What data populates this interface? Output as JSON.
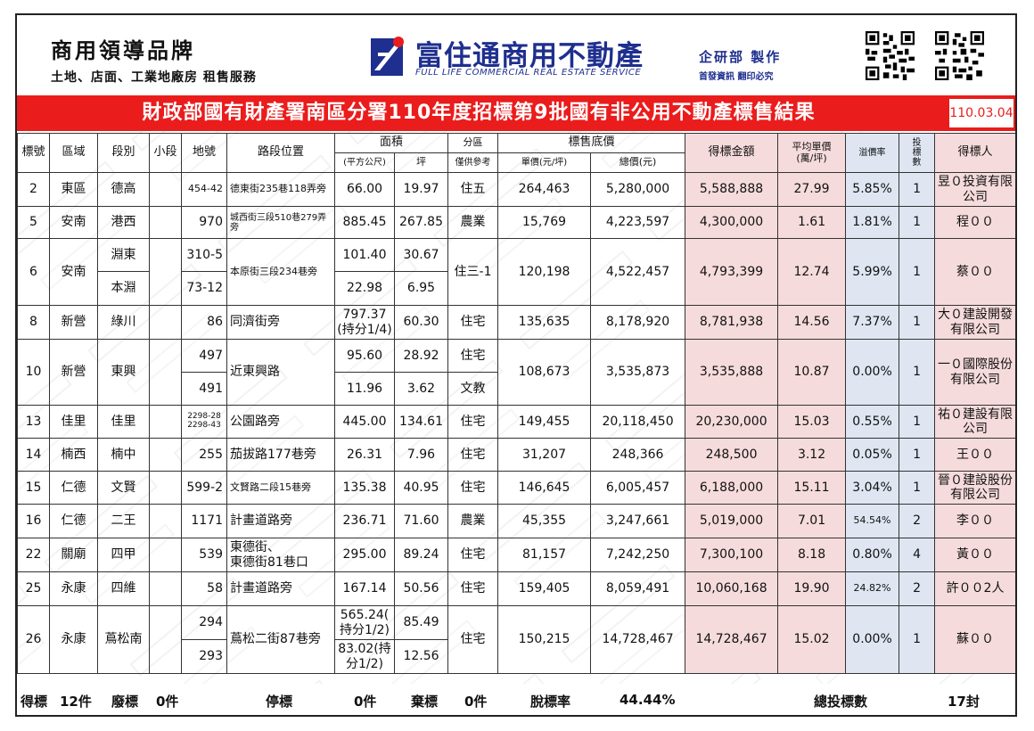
{
  "header": {
    "brand_title": "商用領導品牌",
    "brand_subtitle": "土地、店面、工業地廠房 租售服務",
    "logo_name": "富住通商用不動產",
    "logo_english": "FULL LIFE COMMERCIAL REAL ESTATE SERVICE",
    "dept_line1": "企研部 製作",
    "dept_line2": "首發資訊 翻印必究",
    "qr_icons": [
      "qr-code-icon",
      "qr-code-icon"
    ]
  },
  "title": {
    "text": "財政部國有財產署南區分署110年度招標第9批國有非公用不動產標售結果",
    "date": "110.03.04"
  },
  "columns": {
    "no": "標號",
    "area": "區域",
    "section": "段別",
    "subsection": "小段",
    "lot": "地號",
    "location": "路段位置",
    "area_group": "面積",
    "sqm": "(平方公尺)",
    "ping": "坪",
    "zone_group": "分區",
    "zone_ref": "僅供參考",
    "base_price_group": "標售底價",
    "unit_price": "單價(元/坪)",
    "total_price": "總價(元)",
    "winning_amount": "得標金額",
    "avg_unit_price": "平均單價\n(萬/坪)",
    "premium_rate": "溢價率",
    "bid_count": "投標數",
    "winner": "得標人"
  },
  "rows": [
    {
      "no": "2",
      "area": "東區",
      "section": "德高",
      "lot": "454-42",
      "location": "德東街235巷118弄旁",
      "sqm": "66.00",
      "ping": "19.97",
      "zone": "住五",
      "unit": "264,463",
      "total": "5,280,000",
      "win": "5,588,888",
      "avg": "27.99",
      "prem": "5.85%",
      "bids": "1",
      "winner": "昱０投資有限公司"
    },
    {
      "no": "5",
      "area": "安南",
      "section": "港西",
      "lot": "970",
      "location": "城西街三段510巷279弄旁",
      "sqm": "885.45",
      "ping": "267.85",
      "zone": "農業",
      "unit": "15,769",
      "total": "4,223,597",
      "win": "4,300,000",
      "avg": "1.61",
      "prem": "1.81%",
      "bids": "1",
      "winner": "程００"
    },
    {
      "no": "6",
      "area": "安南",
      "section_a": "淵東",
      "section_b": "本淵",
      "lot_a": "310-5",
      "lot_b": "73-12",
      "location": "本原街三段234巷旁",
      "sqm_a": "101.40",
      "ping_a": "30.67",
      "sqm_b": "22.98",
      "ping_b": "6.95",
      "zone": "住三-1",
      "unit": "120,198",
      "total": "4,522,457",
      "win": "4,793,399",
      "avg": "12.74",
      "prem": "5.99%",
      "bids": "1",
      "winner": "蔡００"
    },
    {
      "no": "8",
      "area": "新營",
      "section": "綠川",
      "lot": "86",
      "location": "同濟街旁",
      "sqm": "797.37\n(持分1/4)",
      "ping": "60.30",
      "zone": "住宅",
      "unit": "135,635",
      "total": "8,178,920",
      "win": "8,781,938",
      "avg": "14.56",
      "prem": "7.37%",
      "bids": "1",
      "winner": "大０建設開發有限公司"
    },
    {
      "no": "10",
      "area": "新營",
      "section": "東興",
      "lot_a": "497",
      "lot_b": "491",
      "location": "近東興路",
      "sqm_a": "95.60",
      "ping_a": "28.92",
      "zone_a": "住宅",
      "sqm_b": "11.96",
      "ping_b": "3.62",
      "zone_b": "文教",
      "unit": "108,673",
      "total": "3,535,873",
      "win": "3,535,888",
      "avg": "10.87",
      "prem": "0.00%",
      "bids": "1",
      "winner": "一０國際股份有限公司"
    },
    {
      "no": "13",
      "area": "佳里",
      "section": "佳里",
      "lot": "2298-28\n2298-43",
      "location": "公園路旁",
      "sqm": "445.00",
      "ping": "134.61",
      "zone": "住宅",
      "unit": "149,455",
      "total": "20,118,450",
      "win": "20,230,000",
      "avg": "15.03",
      "prem": "0.55%",
      "bids": "1",
      "winner": "祐０建設有限公司"
    },
    {
      "no": "14",
      "area": "楠西",
      "section": "楠中",
      "lot": "255",
      "location": "茄拔路177巷旁",
      "sqm": "26.31",
      "ping": "7.96",
      "zone": "住宅",
      "unit": "31,207",
      "total": "248,366",
      "win": "248,500",
      "avg": "3.12",
      "prem": "0.05%",
      "bids": "1",
      "winner": "王００"
    },
    {
      "no": "15",
      "area": "仁德",
      "section": "文賢",
      "lot": "599-2",
      "location": "文賢路二段15巷旁",
      "sqm": "135.38",
      "ping": "40.95",
      "zone": "住宅",
      "unit": "146,645",
      "total": "6,005,457",
      "win": "6,188,000",
      "avg": "15.11",
      "prem": "3.04%",
      "bids": "1",
      "winner": "晉０建設股份有限公司"
    },
    {
      "no": "16",
      "area": "仁德",
      "section": "二王",
      "lot": "1171",
      "location": "計畫道路旁",
      "sqm": "236.71",
      "ping": "71.60",
      "zone": "農業",
      "unit": "45,355",
      "total": "3,247,661",
      "win": "5,019,000",
      "avg": "7.01",
      "prem": "54.54%",
      "bids": "2",
      "winner": "李００"
    },
    {
      "no": "22",
      "area": "關廟",
      "section": "四甲",
      "lot": "539",
      "location": "東德街、\n東德街81巷口",
      "sqm": "295.00",
      "ping": "89.24",
      "zone": "住宅",
      "unit": "81,157",
      "total": "7,242,250",
      "win": "7,300,100",
      "avg": "8.18",
      "prem": "0.80%",
      "bids": "4",
      "winner": "黃００"
    },
    {
      "no": "25",
      "area": "永康",
      "section": "四維",
      "lot": "58",
      "location": "計畫道路旁",
      "sqm": "167.14",
      "ping": "50.56",
      "zone": "住宅",
      "unit": "159,405",
      "total": "8,059,491",
      "win": "10,060,168",
      "avg": "19.90",
      "prem": "24.82%",
      "bids": "2",
      "winner": "許００2人"
    },
    {
      "no": "26",
      "area": "永康",
      "section": "蔦松南",
      "lot_a": "294",
      "lot_b": "293",
      "location": "蔦松二街87巷旁",
      "sqm_a": "565.24(\n持分1/2)",
      "ping_a": "85.49",
      "sqm_b": "83.02(持\n分1/2)",
      "ping_b": "12.56",
      "zone": "住宅",
      "unit": "150,215",
      "total": "14,728,467",
      "win": "14,728,467",
      "avg": "15.02",
      "prem": "0.00%",
      "bids": "1",
      "winner": "蘇００"
    }
  ],
  "footer": {
    "won_label": "得標",
    "won_value": "12件",
    "void_label": "廢標",
    "void_value": "0件",
    "stopped_label": "停標",
    "stopped_value": "0件",
    "abandoned_label": "棄標",
    "abandoned_value": "0件",
    "unsold_rate_label": "脫標率",
    "unsold_rate_value": "44.44%",
    "total_bids_label": "總投標數",
    "total_bids_value": "17封"
  },
  "colors": {
    "title_red": "#ea1c1c",
    "brand_blue": "#1e2f8f",
    "pink_fill": "#f6dbdc",
    "blue_fill": "#dfe6f2"
  }
}
